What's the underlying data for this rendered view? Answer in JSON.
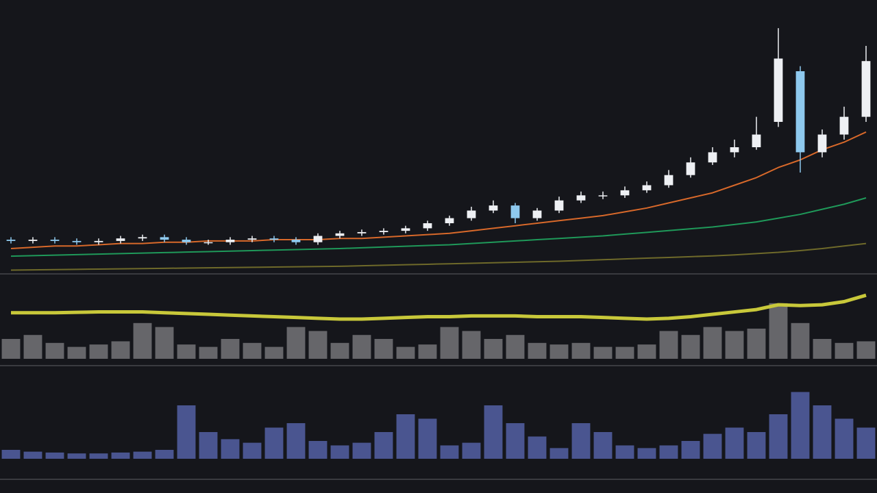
{
  "chart_data": [
    {
      "type": "candlestick",
      "x": [
        0,
        1,
        2,
        3,
        4,
        5,
        6,
        7,
        8,
        9,
        10,
        11,
        12,
        13,
        14,
        15,
        16,
        17,
        18,
        19,
        20,
        21,
        22,
        23,
        24,
        25,
        26,
        27,
        28,
        29,
        30,
        31,
        32,
        33,
        34,
        35,
        36,
        37,
        38,
        39
      ],
      "xlim": [
        -0.5,
        39.5
      ],
      "ylim": [
        0,
        100
      ],
      "open": [
        13.5,
        13,
        13.5,
        13,
        12.5,
        13,
        14,
        14.5,
        13.5,
        12.5,
        12.5,
        13.5,
        14,
        13.5,
        12.5,
        15,
        16,
        16.5,
        17,
        18,
        20,
        22,
        25,
        27,
        22,
        25,
        29,
        31,
        31,
        33,
        35,
        39,
        44,
        48,
        50,
        60,
        80,
        48,
        55,
        62
      ],
      "high": [
        14.5,
        14.5,
        14.5,
        14,
        14,
        15,
        15.5,
        15.5,
        14.5,
        13.5,
        14.5,
        15,
        15,
        14.5,
        16,
        17,
        17.5,
        18,
        19,
        21,
        23,
        26.5,
        29,
        28,
        26,
        30.5,
        32.5,
        32.5,
        34.5,
        36.5,
        41,
        46,
        50,
        53,
        62,
        97,
        82,
        57,
        66,
        90
      ],
      "low": [
        12,
        12,
        12,
        11.5,
        11.5,
        12,
        13,
        12.5,
        11.5,
        11.5,
        11.5,
        12.5,
        12.5,
        11.5,
        11.5,
        14,
        15,
        15.5,
        16,
        17,
        19,
        21,
        24,
        20,
        21,
        24,
        28,
        29.5,
        30,
        32,
        34,
        38,
        43,
        46,
        49,
        58,
        40,
        46,
        53,
        60
      ],
      "close": [
        13,
        13.5,
        13,
        12.5,
        13,
        14,
        14.5,
        13.5,
        12.5,
        12.5,
        13.5,
        14,
        13.5,
        12.5,
        15,
        16,
        16.5,
        17,
        18,
        20,
        22,
        25,
        27,
        22,
        25,
        29,
        31,
        31,
        33,
        35,
        39,
        44,
        48,
        50,
        55,
        85,
        48,
        55,
        62,
        84
      ],
      "up_color": "#eef0f4",
      "down_color": "#8ec9ee",
      "series": [
        {
          "color": "#d9692a",
          "values": [
            10,
            10.5,
            11,
            11,
            11.5,
            12,
            12,
            12.5,
            12.5,
            13,
            13,
            13,
            13.5,
            13.5,
            13.5,
            14,
            14,
            14.5,
            15,
            15.5,
            16,
            17,
            18,
            19,
            20,
            21,
            22,
            23,
            24.5,
            26,
            28,
            30,
            32,
            35,
            38,
            42,
            45,
            49,
            52,
            56
          ]
        },
        {
          "color": "#1f9a5a",
          "values": [
            7,
            7.2,
            7.4,
            7.6,
            7.8,
            8,
            8.2,
            8.4,
            8.6,
            8.8,
            9,
            9.2,
            9.4,
            9.6,
            9.8,
            10,
            10.3,
            10.6,
            10.9,
            11.2,
            11.5,
            12,
            12.5,
            13,
            13.5,
            14,
            14.5,
            15,
            15.7,
            16.4,
            17.1,
            17.8,
            18.5,
            19.5,
            20.5,
            22,
            23.5,
            25.5,
            27.5,
            30
          ]
        },
        {
          "color": "#6f6a2a",
          "values": [
            1.5,
            1.6,
            1.7,
            1.8,
            1.9,
            2,
            2.1,
            2.2,
            2.3,
            2.4,
            2.5,
            2.6,
            2.7,
            2.8,
            2.9,
            3,
            3.2,
            3.4,
            3.6,
            3.8,
            4,
            4.2,
            4.4,
            4.6,
            4.8,
            5,
            5.3,
            5.6,
            5.9,
            6.2,
            6.5,
            6.8,
            7.1,
            7.5,
            8,
            8.5,
            9.2,
            10,
            11,
            12
          ]
        }
      ]
    },
    {
      "type": "bar",
      "x": [
        0,
        1,
        2,
        3,
        4,
        5,
        6,
        7,
        8,
        9,
        10,
        11,
        12,
        13,
        14,
        15,
        16,
        17,
        18,
        19,
        20,
        21,
        22,
        23,
        24,
        25,
        26,
        27,
        28,
        29,
        30,
        31,
        32,
        33,
        34,
        35,
        36,
        37,
        38,
        39
      ],
      "xlim": [
        -0.5,
        39.5
      ],
      "ylim": [
        0,
        100
      ],
      "values": [
        25,
        30,
        20,
        15,
        18,
        22,
        45,
        40,
        18,
        15,
        25,
        20,
        15,
        40,
        35,
        20,
        30,
        25,
        15,
        18,
        40,
        35,
        25,
        30,
        20,
        18,
        20,
        15,
        15,
        18,
        35,
        30,
        40,
        35,
        38,
        70,
        45,
        25,
        20,
        22
      ],
      "color": "#66666a",
      "series": [
        {
          "color": "#c8c83a",
          "values": [
            58,
            58,
            58,
            58.5,
            59,
            59,
            59,
            58,
            57,
            56,
            55,
            54,
            53,
            52,
            51,
            50,
            50,
            51,
            52,
            53,
            53,
            54,
            54,
            54,
            53,
            53,
            53,
            52,
            51,
            50,
            51,
            53,
            56,
            59,
            62,
            68,
            67,
            68,
            72,
            80
          ]
        }
      ]
    },
    {
      "type": "bar",
      "x": [
        0,
        1,
        2,
        3,
        4,
        5,
        6,
        7,
        8,
        9,
        10,
        11,
        12,
        13,
        14,
        15,
        16,
        17,
        18,
        19,
        20,
        21,
        22,
        23,
        24,
        25,
        26,
        27,
        28,
        29,
        30,
        31,
        32,
        33,
        34,
        35,
        36,
        37,
        38,
        39
      ],
      "xlim": [
        -0.5,
        39.5
      ],
      "ylim": [
        0,
        100
      ],
      "values": [
        10,
        8,
        7,
        6,
        6,
        7,
        8,
        10,
        60,
        30,
        22,
        18,
        35,
        40,
        20,
        15,
        18,
        30,
        50,
        45,
        15,
        18,
        60,
        40,
        25,
        12,
        40,
        30,
        15,
        12,
        15,
        20,
        28,
        35,
        30,
        50,
        75,
        60,
        45,
        35
      ],
      "color": "#4a5590"
    }
  ]
}
